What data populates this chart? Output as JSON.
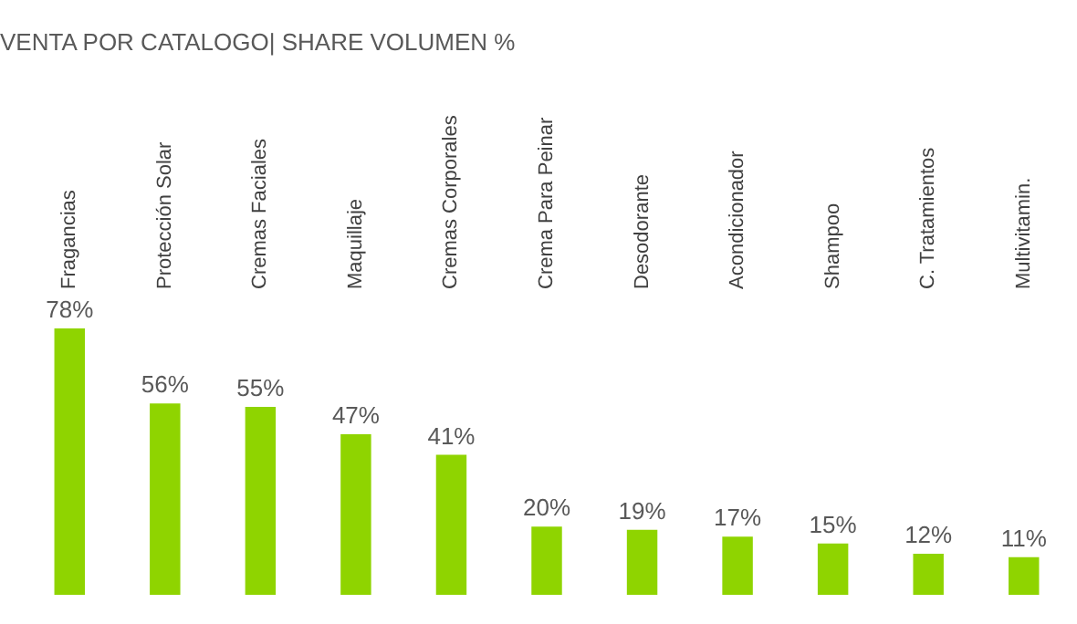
{
  "chart_data": {
    "type": "bar",
    "title": "VENTA POR CATALOGO| SHARE VOLUMEN %",
    "categories": [
      "Fragancias",
      "Protección Solar",
      "Cremas Faciales",
      "Maquillaje",
      "Cremas Corporales",
      "Crema Para Peinar",
      "Desodorante",
      "Acondicionador",
      "Shampoo",
      "C. Tratamientos",
      "Multivitamin."
    ],
    "values": [
      78,
      56,
      55,
      47,
      41,
      20,
      19,
      17,
      15,
      12,
      11
    ],
    "value_labels": [
      "78%",
      "56%",
      "55%",
      "47%",
      "41%",
      "20%",
      "19%",
      "17%",
      "15%",
      "12%",
      "11%"
    ],
    "color": "#8fd400"
  }
}
